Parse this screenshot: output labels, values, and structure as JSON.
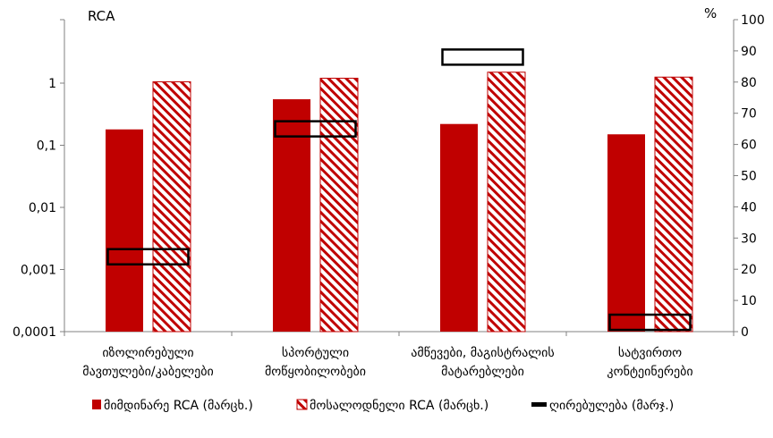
{
  "chart_data": {
    "type": "bar",
    "title": "",
    "left_axis": {
      "label": "RCA",
      "scale": "log",
      "range": [
        0.0001,
        10
      ],
      "ticks": [
        "0,0001",
        "0,001",
        "0,01",
        "0,1",
        "1"
      ],
      "tick_values": [
        0.0001,
        0.001,
        0.01,
        0.1,
        1
      ]
    },
    "right_axis": {
      "label": "%",
      "scale": "linear",
      "range": [
        0,
        100
      ],
      "ticks": [
        "0",
        "10",
        "20",
        "30",
        "40",
        "50",
        "60",
        "70",
        "80",
        "90",
        "100"
      ]
    },
    "categories": [
      [
        "იზოლირებული",
        "მავთულები/კაბელები"
      ],
      [
        "სპორტული",
        "მოწყობილობები"
      ],
      [
        "ამწევები, მაგისტრალის",
        "მატარებლები"
      ],
      [
        "სატვირთო",
        "კონტეინერები"
      ]
    ],
    "series": [
      {
        "name": "მიმდინარე RCA (მარცხ.)",
        "kind": "solid-bar",
        "axis": "left",
        "color": "#c00000",
        "values": [
          0.18,
          0.55,
          0.22,
          0.15
        ]
      },
      {
        "name": "მოსალოდნელი RCA (მარცხ.)",
        "kind": "hatched-bar",
        "axis": "left",
        "color": "#c00000",
        "values": [
          1.05,
          1.2,
          1.5,
          1.25
        ]
      },
      {
        "name": "ღირებულება (მარჯ.)",
        "kind": "marker-box",
        "axis": "right",
        "color": "#000000",
        "values": [
          24,
          65,
          88,
          3
        ]
      }
    ],
    "legend_position": "bottom",
    "grid": false
  }
}
